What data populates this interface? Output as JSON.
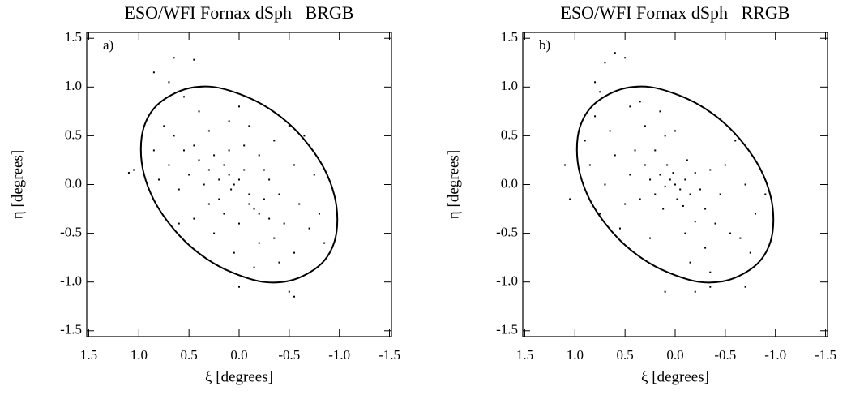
{
  "chart_data": [
    {
      "type": "scatter",
      "title": "ESO/WFI Fornax dSph   BRGB",
      "panel_label": "a)",
      "x_label": "ξ [degrees]",
      "y_label": "η [degrees]",
      "xlim": [
        1.52,
        -1.52
      ],
      "ylim": [
        -1.56,
        1.56
      ],
      "xticks": [
        1.5,
        {
          "value": 1,
          "label": "1.0"
        },
        0.5,
        {
          "value": 0,
          "label": "0.0"
        },
        -0.5,
        {
          "value": -1,
          "label": "-1.0"
        },
        -1.5
      ],
      "yticks": [
        -1.5,
        {
          "value": -1,
          "label": "-1.0"
        },
        -0.5,
        {
          "value": 0,
          "label": "0.0"
        },
        0.5,
        {
          "value": 1,
          "label": "1.0"
        },
        1.5
      ],
      "color": "#000000",
      "x": [
        0.1,
        0.05,
        0.0,
        -0.05,
        0.15,
        0.2,
        0.08,
        -0.1,
        -0.15,
        -0.2,
        -0.1,
        -0.25,
        -0.3,
        0.25,
        0.3,
        0.35,
        0.4,
        0.45,
        0.5,
        0.2,
        0.1,
        -0.05,
        -0.2,
        -0.3,
        -0.4,
        -0.45,
        -0.35,
        -0.2,
        0.0,
        0.15,
        0.3,
        0.55,
        0.65,
        0.7,
        0.6,
        0.75,
        0.8,
        0.85,
        0.3,
        0.1,
        -0.1,
        -0.35,
        -0.55,
        -0.6,
        -0.7,
        -0.55,
        -0.4,
        -0.15,
        0.05,
        0.25,
        0.45,
        -0.75,
        -0.8,
        -0.65,
        -0.5,
        0.0,
        0.4,
        0.85,
        0.7,
        0.65,
        0.45,
        1.05,
        1.1,
        -0.5,
        -0.55,
        0.0,
        0.55,
        -0.85,
        0.6,
        -0.25
      ],
      "y": [
        0.1,
        0.0,
        0.05,
        0.15,
        0.2,
        0.05,
        -0.05,
        -0.1,
        -0.25,
        -0.3,
        -0.2,
        -0.15,
        -0.35,
        0.3,
        0.15,
        0.0,
        0.25,
        0.4,
        0.1,
        -0.15,
        0.35,
        0.4,
        0.3,
        0.05,
        -0.1,
        -0.4,
        -0.55,
        -0.6,
        -0.4,
        -0.3,
        -0.2,
        0.35,
        0.5,
        0.2,
        -0.05,
        0.6,
        0.05,
        0.35,
        0.55,
        0.65,
        0.6,
        0.45,
        0.2,
        -0.2,
        -0.45,
        -0.7,
        -0.8,
        -0.85,
        -0.7,
        -0.5,
        -0.35,
        0.1,
        -0.3,
        0.5,
        0.6,
        0.8,
        0.75,
        1.15,
        1.05,
        1.3,
        1.28,
        0.15,
        0.12,
        -1.1,
        -1.15,
        -1.05,
        0.9,
        -0.6,
        -0.4,
        0.15
      ],
      "ellipse": {
        "x": [
          0.98,
          0.95,
          0.85,
          0.69,
          0.49,
          0.25,
          0.0,
          -0.25,
          -0.49,
          -0.69,
          -0.85,
          -0.95,
          -0.98,
          -0.95,
          -0.85,
          -0.69,
          -0.49,
          -0.25,
          0.0,
          0.25,
          0.49,
          0.69,
          0.85,
          0.95
        ],
        "y": [
          0.36,
          0.59,
          0.78,
          0.91,
          0.99,
          1.0,
          0.93,
          0.81,
          0.63,
          0.41,
          0.16,
          -0.11,
          -0.36,
          -0.59,
          -0.78,
          -0.91,
          -0.99,
          -1.0,
          -0.93,
          -0.81,
          -0.63,
          -0.41,
          -0.16,
          0.11
        ]
      }
    },
    {
      "type": "scatter",
      "title": "ESO/WFI Fornax dSph   RRGB",
      "panel_label": "b)",
      "x_label": "ξ [degrees]",
      "y_label": "η [degrees]",
      "xlim": [
        1.52,
        -1.52
      ],
      "ylim": [
        -1.56,
        1.56
      ],
      "xticks": [
        1.5,
        {
          "value": 1,
          "label": "1.0"
        },
        0.5,
        {
          "value": 0,
          "label": "0.0"
        },
        -0.5,
        {
          "value": -1,
          "label": "-1.0"
        },
        -1.5
      ],
      "yticks": [
        -1.5,
        {
          "value": -1,
          "label": "-1.0"
        },
        -0.5,
        {
          "value": 0,
          "label": "0.0"
        },
        0.5,
        {
          "value": 1,
          "label": "1.0"
        },
        1.5
      ],
      "color": "#000000",
      "x": [
        0,
        0.05,
        -0.05,
        0.1,
        -0.1,
        0.02,
        -0.02,
        0.15,
        -0.15,
        0.2,
        -0.2,
        0.08,
        -0.08,
        0.25,
        -0.25,
        0.12,
        -0.12,
        0.3,
        -0.3,
        0.35,
        -0.35,
        0.2,
        -0.2,
        0.45,
        -0.45,
        0.4,
        -0.4,
        0.5,
        -0.5,
        0.1,
        -0.1,
        0.6,
        -0.55,
        0.3,
        -0.3,
        0.7,
        -0.7,
        0.65,
        -0.65,
        0.15,
        -0.15,
        0.8,
        0.85,
        -0.8,
        0.9,
        0.35,
        -0.35,
        0.55,
        -0.6,
        0.25,
        0.75,
        -0.75,
        0.7,
        0.6,
        0.5,
        0.8,
        0.75,
        1.1,
        1.05,
        -0.2,
        -0.35,
        0.1,
        -0.7,
        -0.9,
        0.0,
        0.45
      ],
      "y": [
        0,
        0.05,
        -0.05,
        -0.02,
        0.05,
        0.12,
        -0.15,
        0.1,
        -0.1,
        -0.1,
        0.12,
        0.2,
        -0.22,
        0.05,
        -0.05,
        -0.25,
        0.25,
        0.2,
        -0.25,
        -0.15,
        0.15,
        0.35,
        -0.38,
        0.1,
        -0.1,
        0.35,
        -0.4,
        -0.2,
        0.2,
        0.5,
        -0.5,
        0.3,
        -0.5,
        0.6,
        -0.65,
        0.0,
        0.0,
        0.55,
        -0.55,
        0.75,
        -0.8,
        0.7,
        0.2,
        -0.3,
        0.45,
        0.85,
        -0.9,
        -0.45,
        0.45,
        -0.55,
        -0.3,
        -0.7,
        1.25,
        1.35,
        1.3,
        1.05,
        0.95,
        0.2,
        -0.15,
        -1.1,
        -1.05,
        -1.1,
        -1.05,
        -0.1,
        0.55,
        0.8
      ],
      "ellipse": {
        "x": [
          0.98,
          0.95,
          0.85,
          0.69,
          0.49,
          0.25,
          0.0,
          -0.25,
          -0.49,
          -0.69,
          -0.85,
          -0.95,
          -0.98,
          -0.95,
          -0.85,
          -0.69,
          -0.49,
          -0.25,
          0.0,
          0.25,
          0.49,
          0.69,
          0.85,
          0.95
        ],
        "y": [
          0.36,
          0.59,
          0.78,
          0.91,
          0.99,
          1.0,
          0.93,
          0.81,
          0.63,
          0.41,
          0.16,
          -0.11,
          -0.36,
          -0.59,
          -0.78,
          -0.91,
          -0.99,
          -1.0,
          -0.93,
          -0.81,
          -0.63,
          -0.41,
          -0.16,
          0.11
        ]
      }
    }
  ]
}
